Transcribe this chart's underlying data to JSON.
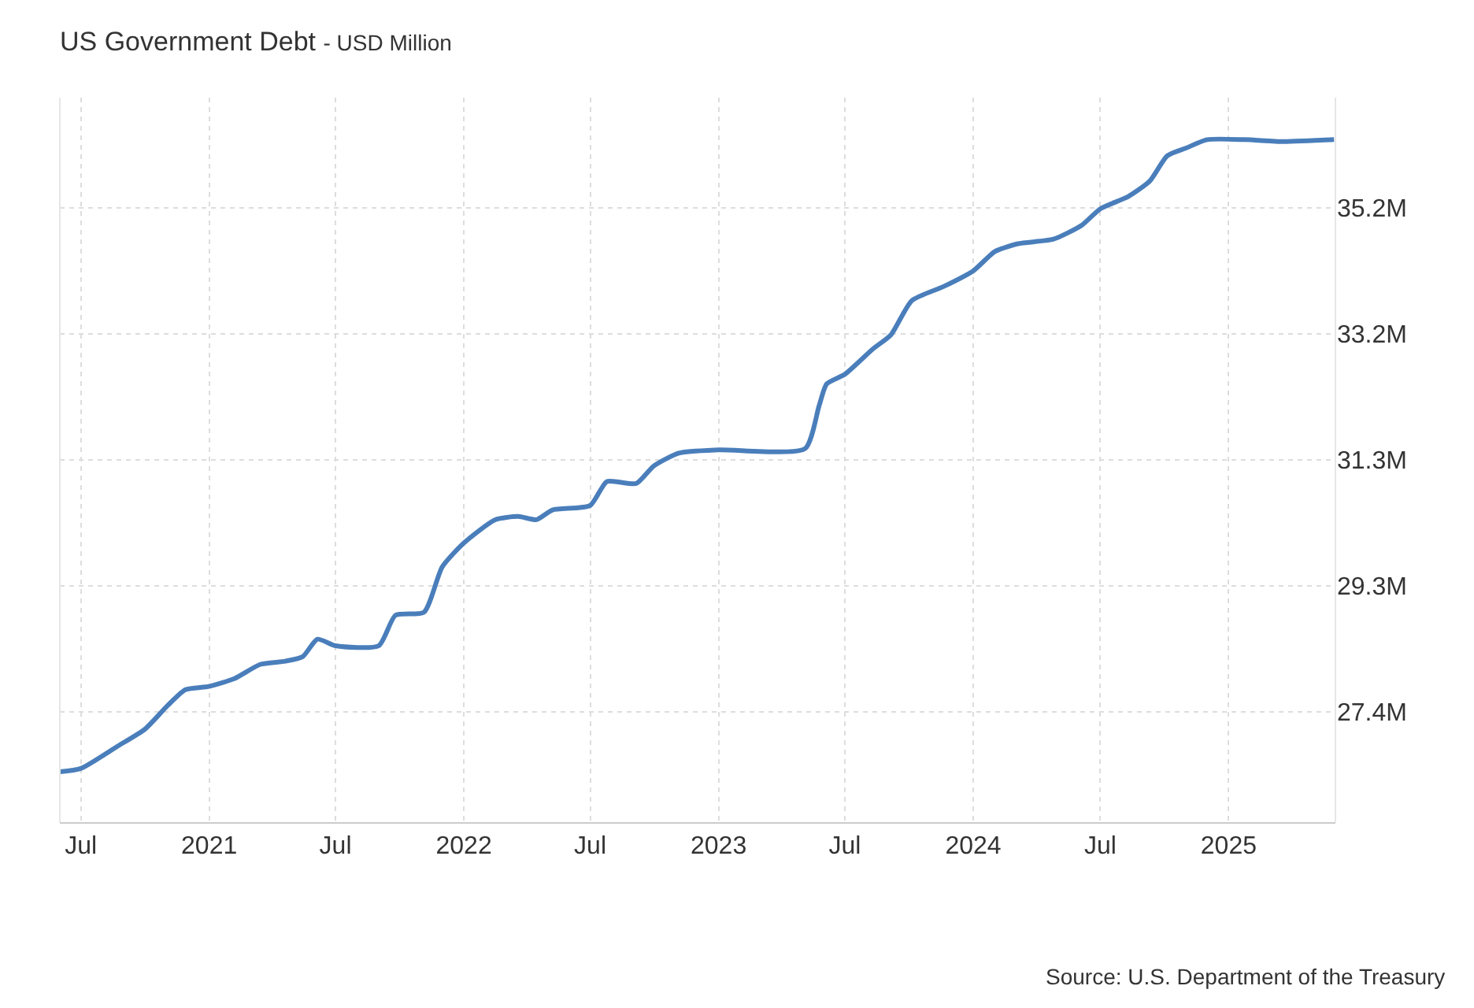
{
  "chart_data": {
    "type": "line",
    "title": "US Government Debt",
    "subtitle": "- USD Million",
    "annotations": [
      "Source: U.S. Department of the Treasury"
    ],
    "x": [
      "2020-06-01",
      "2020-07-01",
      "2020-08-22",
      "2020-10-01",
      "2020-11-03",
      "2020-11-28",
      "2021-01-01",
      "2021-02-06",
      "2021-03-15",
      "2021-04-20",
      "2021-05-15",
      "2021-06-05",
      "2021-07-01",
      "2021-09-01",
      "2021-09-25",
      "2021-11-05",
      "2021-12-01",
      "2022-01-01",
      "2022-02-15",
      "2022-03-20",
      "2022-04-15",
      "2022-05-08",
      "2022-07-01",
      "2022-07-25",
      "2022-09-05",
      "2022-09-30",
      "2022-11-05",
      "2023-01-01",
      "2023-05-05",
      "2023-05-25",
      "2023-06-05",
      "2023-07-01",
      "2023-08-10",
      "2023-09-05",
      "2023-10-05",
      "2023-11-20",
      "2024-01-01",
      "2024-02-01",
      "2024-03-05",
      "2024-04-25",
      "2024-06-05",
      "2024-07-01",
      "2024-08-10",
      "2024-09-10",
      "2024-10-05",
      "2024-11-01",
      "2024-12-01",
      "2025-01-25",
      "2025-03-20",
      "2025-06-01"
    ],
    "series": [
      {
        "color": "#4a7ebb",
        "values": [
          26.42,
          26.47,
          26.81,
          27.08,
          27.45,
          27.69,
          27.74,
          27.86,
          28.08,
          28.13,
          28.2,
          28.47,
          28.37,
          28.37,
          28.84,
          28.89,
          29.59,
          29.96,
          30.32,
          30.37,
          30.32,
          30.47,
          30.54,
          30.91,
          30.88,
          31.15,
          31.35,
          31.4,
          31.42,
          32.08,
          32.42,
          32.57,
          32.96,
          33.18,
          33.71,
          33.93,
          34.17,
          34.47,
          34.59,
          34.66,
          34.88,
          35.13,
          35.32,
          35.56,
          35.95,
          36.07,
          36.2,
          36.2,
          36.17,
          36.2
        ]
      }
    ],
    "xlim": [
      "2020-06-01",
      "2025-06-03"
    ],
    "xticks": [
      {
        "value": "2020-07-01",
        "label": "Jul"
      },
      {
        "value": "2021-01-01",
        "label": "2021"
      },
      {
        "value": "2021-07-01",
        "label": "Jul"
      },
      {
        "value": "2022-01-01",
        "label": "2022"
      },
      {
        "value": "2022-07-01",
        "label": "Jul"
      },
      {
        "value": "2023-01-01",
        "label": "2023"
      },
      {
        "value": "2023-07-01",
        "label": "Jul"
      },
      {
        "value": "2024-01-01",
        "label": "2024"
      },
      {
        "value": "2024-07-01",
        "label": "Jul"
      },
      {
        "value": "2025-01-01",
        "label": "2025"
      }
    ],
    "ylim": [
      25.64,
      36.85
    ],
    "yticks": [
      {
        "value": 27.35,
        "label": "27.4M"
      },
      {
        "value": 29.3,
        "label": "29.3M"
      },
      {
        "value": 31.25,
        "label": "31.3M"
      },
      {
        "value": 33.2,
        "label": "33.2M"
      },
      {
        "value": 35.15,
        "label": "35.2M"
      }
    ],
    "grid": true,
    "legend": false,
    "marker": "none",
    "line_style": "solid"
  }
}
